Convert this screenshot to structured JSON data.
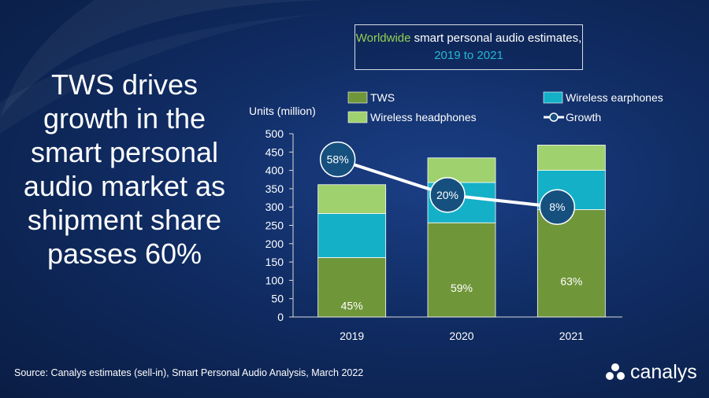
{
  "headline": {
    "lines": [
      "TWS drives",
      "growth in the",
      "smart personal",
      "audio market as",
      "shipment share",
      "passes 60%"
    ]
  },
  "title_box": {
    "part1": "Worldwide",
    "part2": " smart personal audio estimates, ",
    "part3": "2019 to 2021"
  },
  "source": "Source: Canalys estimates (sell-in), Smart Personal Audio Analysis, March 2022",
  "brand": "canalys",
  "colors": {
    "tws": "#70963a",
    "earphones": "#14b0c8",
    "headphones": "#9fd16e",
    "growth_line": "#ffffff",
    "growth_marker": "#16507e",
    "highlight_green": "#92d050",
    "highlight_teal": "#25b7d3"
  },
  "chart_data": {
    "type": "bar",
    "stacked": true,
    "categories": [
      "2019",
      "2020",
      "2021"
    ],
    "ylabel": "Units (million)",
    "ylim": [
      0,
      500
    ],
    "yticks": [
      0,
      50,
      100,
      150,
      200,
      250,
      300,
      350,
      400,
      450,
      500
    ],
    "series": [
      {
        "name": "TWS",
        "values": [
          162,
          257,
          293
        ],
        "labels": [
          "45%",
          "59%",
          "63%"
        ]
      },
      {
        "name": "Wireless earphones",
        "values": [
          120,
          110,
          107
        ]
      },
      {
        "name": "Wireless headphones",
        "values": [
          79,
          67,
          69
        ]
      }
    ],
    "line_series": {
      "name": "Growth",
      "values": [
        430,
        333,
        300
      ],
      "labels": [
        "58%",
        "20%",
        "8%"
      ]
    },
    "legend": [
      "TWS",
      "Wireless earphones",
      "Wireless headphones",
      "Growth"
    ],
    "legend_position": "top"
  }
}
